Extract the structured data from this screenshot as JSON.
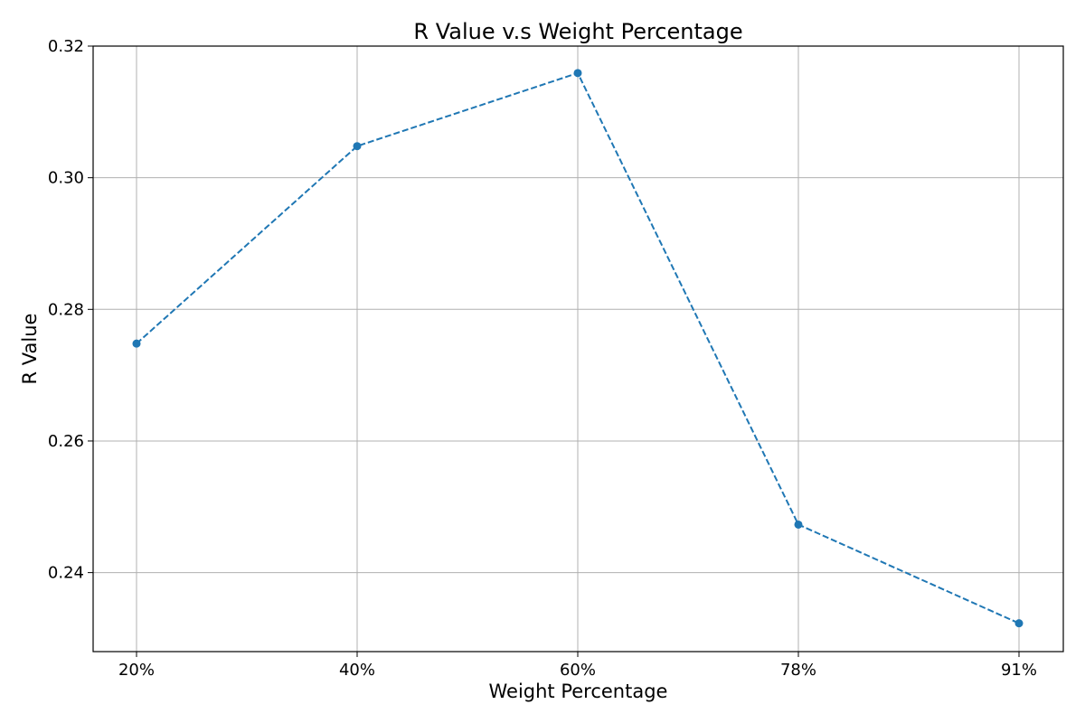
{
  "chart_data": {
    "type": "line",
    "title": "R Value v.s Weight Percentage",
    "xlabel": "Weight Percentage",
    "ylabel": "R Value",
    "categories": [
      "20%",
      "40%",
      "60%",
      "78%",
      "91%"
    ],
    "series": [
      {
        "values": [
          0.2748,
          0.3048,
          0.3159,
          0.2473,
          0.2323
        ],
        "color": "#1f77b4",
        "line_style": "dashed",
        "marker": "circle"
      }
    ],
    "ylim": [
      0.228,
      0.32
    ],
    "yticks": [
      "0.24",
      "0.26",
      "0.28",
      "0.30",
      "0.32"
    ],
    "grid": true,
    "legend": "none"
  }
}
